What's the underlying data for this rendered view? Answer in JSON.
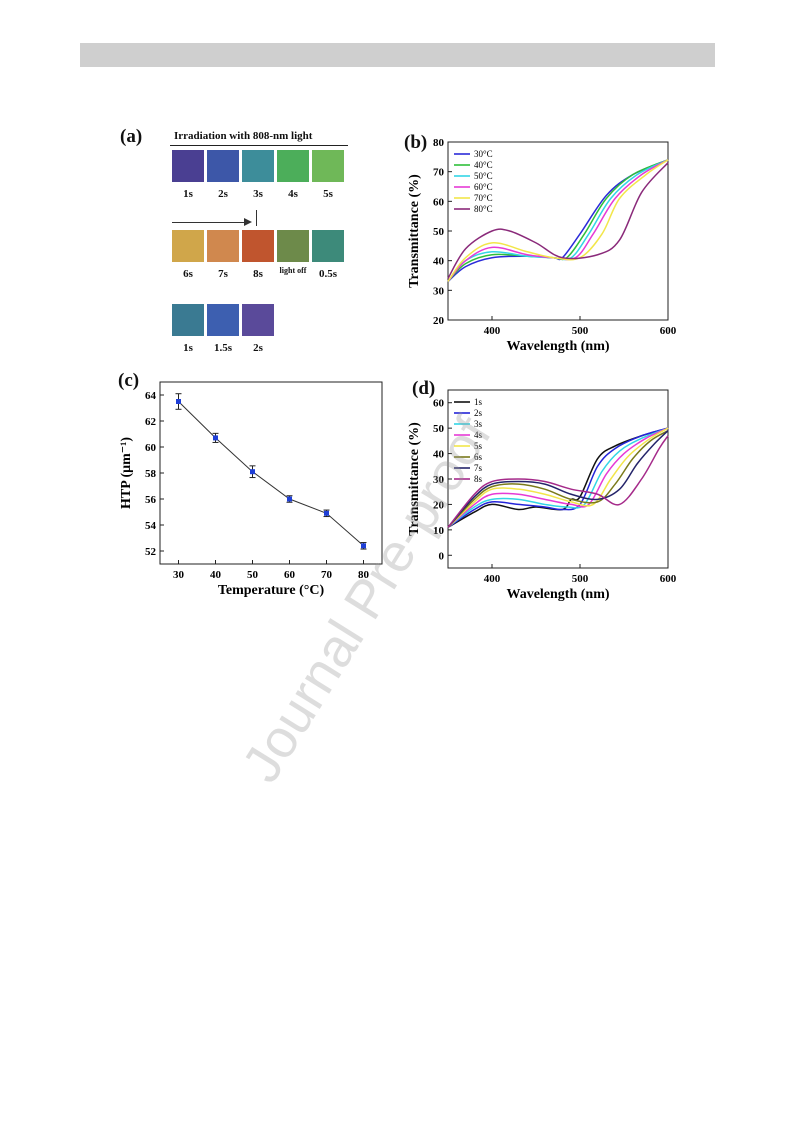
{
  "panel_a": {
    "label": "(a)",
    "title": "Irradiation with 808-nm light",
    "rows": [
      [
        {
          "label": "1s",
          "color": "#4a3f92"
        },
        {
          "label": "2s",
          "color": "#3d57a8"
        },
        {
          "label": "3s",
          "color": "#3d8d9a"
        },
        {
          "label": "4s",
          "color": "#4cae5a"
        },
        {
          "label": "5s",
          "color": "#6fb858"
        }
      ],
      [
        {
          "label": "6s",
          "color": "#d0a64a"
        },
        {
          "label": "7s",
          "color": "#d0884e"
        },
        {
          "label": "8s",
          "color": "#c0552e"
        },
        {
          "label": "light off",
          "color": "#6d8a4a"
        },
        {
          "label": "0.5s",
          "color": "#3d8a7a"
        }
      ],
      [
        {
          "label": "1s",
          "color": "#3a7a92"
        },
        {
          "label": "1.5s",
          "color": "#3d5fb0"
        },
        {
          "label": "2s",
          "color": "#5a4a9a"
        }
      ]
    ]
  },
  "watermark": "Journal Pre-proof",
  "chart_data": [
    {
      "panel": "(b)",
      "type": "line",
      "xlabel": "Wavelength (nm)",
      "ylabel": "Transmittance (%)",
      "xlim": [
        350,
        600
      ],
      "ylim": [
        20,
        80
      ],
      "xticks": [
        400,
        500,
        600
      ],
      "yticks": [
        20,
        30,
        40,
        50,
        60,
        70,
        80
      ],
      "legend": "top-left",
      "series": [
        {
          "name": "30°C",
          "color": "#2b2bd9",
          "x": [
            350,
            370,
            400,
            440,
            470,
            480,
            500,
            530,
            560,
            600
          ],
          "y": [
            33,
            38,
            41,
            41.5,
            41,
            41,
            49,
            62,
            69,
            74
          ]
        },
        {
          "name": "40°C",
          "color": "#2fbf3a",
          "x": [
            350,
            370,
            400,
            440,
            470,
            485,
            505,
            530,
            560,
            600
          ],
          "y": [
            33,
            39,
            42,
            41.5,
            41,
            41,
            49,
            61,
            69,
            74
          ]
        },
        {
          "name": "50°C",
          "color": "#33d6e6",
          "x": [
            350,
            370,
            400,
            440,
            470,
            490,
            510,
            535,
            565,
            600
          ],
          "y": [
            33,
            40,
            43,
            41.5,
            41,
            41,
            49,
            61,
            69,
            74
          ]
        },
        {
          "name": "60°C",
          "color": "#e63ad6",
          "x": [
            350,
            370,
            400,
            440,
            470,
            495,
            515,
            540,
            570,
            600
          ],
          "y": [
            33,
            40,
            44.5,
            42,
            41,
            41,
            49,
            61,
            69,
            74
          ]
        },
        {
          "name": "70°C",
          "color": "#f2e64a",
          "x": [
            350,
            370,
            400,
            440,
            470,
            500,
            525,
            545,
            575,
            600
          ],
          "y": [
            33,
            41,
            46,
            43,
            41,
            41,
            49,
            61,
            69,
            74
          ]
        },
        {
          "name": "80°C",
          "color": "#8a2a7a",
          "x": [
            350,
            370,
            400,
            420,
            450,
            480,
            520,
            545,
            570,
            600
          ],
          "y": [
            34,
            44,
            50,
            50,
            46,
            41,
            42,
            47,
            63,
            73
          ]
        }
      ]
    },
    {
      "panel": "(c)",
      "type": "line",
      "xlabel": "Temperature (°C)",
      "ylabel": "HTP (μm⁻¹)",
      "xlim": [
        25,
        85
      ],
      "ylim": [
        51,
        65
      ],
      "xticks": [
        30,
        40,
        50,
        60,
        70,
        80
      ],
      "yticks": [
        52,
        54,
        56,
        58,
        60,
        62,
        64
      ],
      "series": [
        {
          "x": [
            30,
            40,
            50,
            60,
            70,
            80
          ],
          "y": [
            63.5,
            60.7,
            58.1,
            56.0,
            54.9,
            52.4
          ],
          "err": [
            0.6,
            0.35,
            0.45,
            0.25,
            0.25,
            0.25
          ]
        }
      ]
    },
    {
      "panel": "(d)",
      "type": "line",
      "xlabel": "Wavelength (nm)",
      "ylabel": "Transmittance (%)",
      "xlim": [
        350,
        600
      ],
      "ylim": [
        -5,
        65
      ],
      "xticks": [
        400,
        500,
        600
      ],
      "yticks": [
        0,
        10,
        20,
        30,
        40,
        50,
        60
      ],
      "legend": "top-left",
      "series": [
        {
          "name": "1s",
          "color": "#111111",
          "x": [
            350,
            380,
            400,
            430,
            450,
            480,
            490,
            500,
            520,
            540,
            570,
            600
          ],
          "y": [
            11,
            17,
            20,
            18,
            19,
            18,
            22,
            23,
            38,
            43,
            47,
            50
          ]
        },
        {
          "name": "2s",
          "color": "#2424d9",
          "x": [
            350,
            380,
            400,
            430,
            460,
            480,
            500,
            520,
            540,
            570,
            600
          ],
          "y": [
            11,
            18,
            21,
            20,
            19,
            18,
            20,
            35,
            42,
            47,
            50
          ]
        },
        {
          "name": "3s",
          "color": "#33d6e6",
          "x": [
            350,
            380,
            400,
            430,
            460,
            485,
            505,
            525,
            545,
            570,
            600
          ],
          "y": [
            11,
            19,
            22,
            22,
            20,
            19,
            20,
            33,
            41,
            46,
            50
          ]
        },
        {
          "name": "4s",
          "color": "#e63ad6",
          "x": [
            350,
            380,
            400,
            430,
            460,
            490,
            510,
            530,
            550,
            575,
            600
          ],
          "y": [
            11,
            20,
            24,
            24,
            22,
            20,
            20,
            32,
            40,
            46,
            50
          ]
        },
        {
          "name": "5s",
          "color": "#f2e64a",
          "x": [
            350,
            380,
            400,
            430,
            460,
            490,
            515,
            535,
            555,
            580,
            600
          ],
          "y": [
            11,
            21,
            26,
            26,
            24,
            21,
            20,
            30,
            39,
            46,
            50
          ]
        },
        {
          "name": "6s",
          "color": "#7a7a1a",
          "x": [
            350,
            380,
            400,
            430,
            460,
            490,
            520,
            540,
            560,
            580,
            600
          ],
          "y": [
            11,
            22,
            27,
            28,
            26,
            22,
            21,
            28,
            38,
            45,
            49
          ]
        },
        {
          "name": "7s",
          "color": "#24246a",
          "x": [
            350,
            380,
            400,
            430,
            460,
            490,
            520,
            545,
            565,
            585,
            600
          ],
          "y": [
            11,
            23,
            28,
            29,
            28,
            24,
            22,
            26,
            36,
            44,
            49
          ]
        },
        {
          "name": "8s",
          "color": "#a52a8a",
          "x": [
            350,
            380,
            400,
            430,
            460,
            490,
            520,
            545,
            570,
            590,
            600
          ],
          "y": [
            11,
            24,
            29,
            30,
            29,
            26,
            24,
            20,
            30,
            42,
            47
          ]
        }
      ]
    }
  ]
}
